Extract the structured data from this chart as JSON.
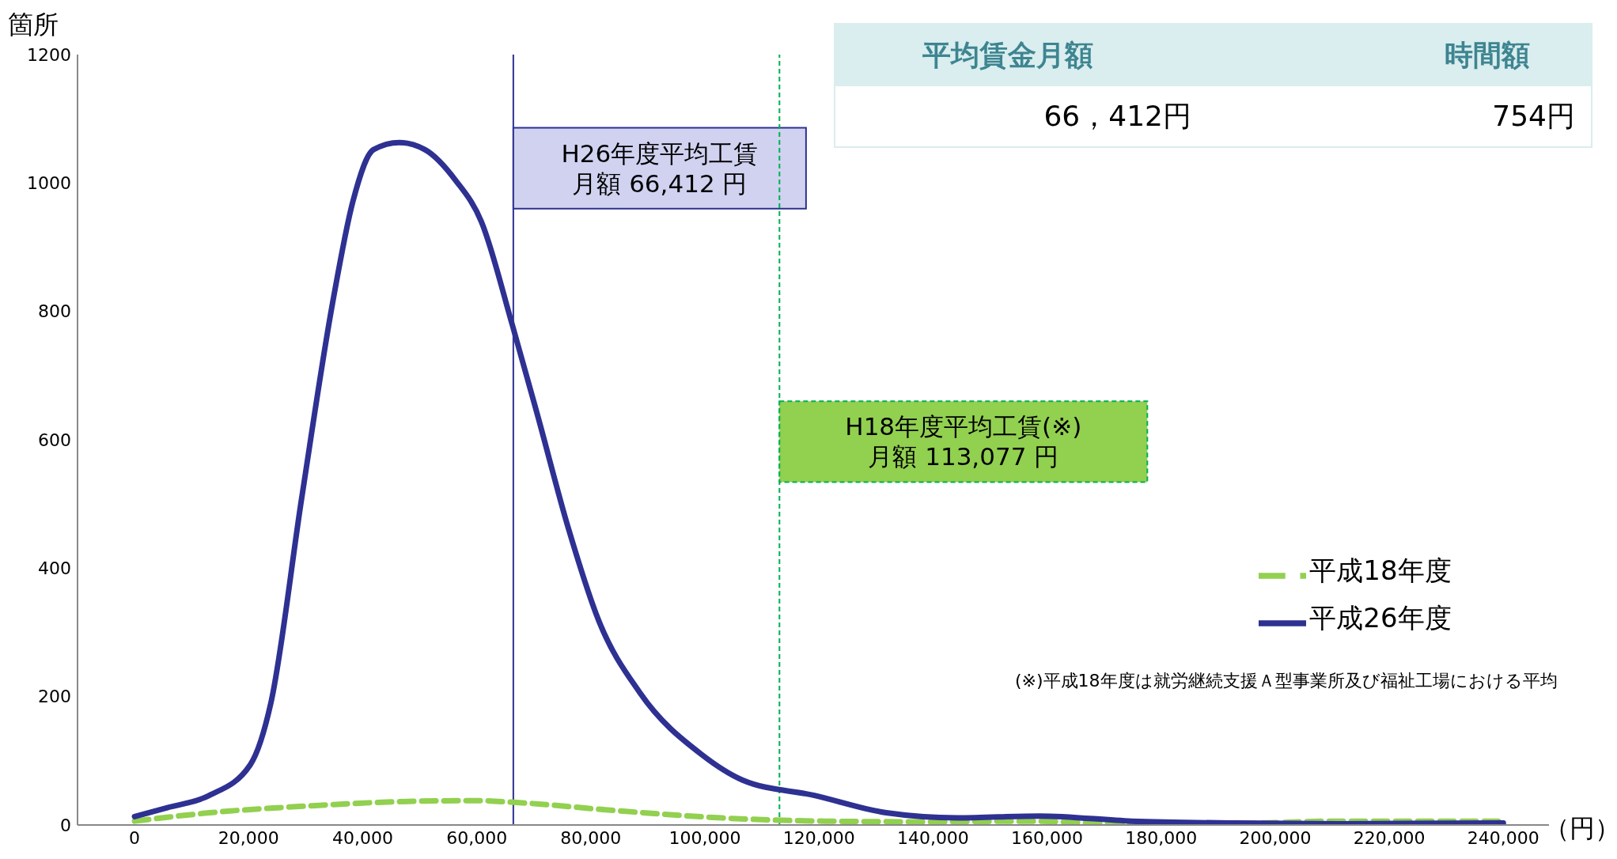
{
  "chart_data": {
    "type": "line",
    "ylabel": "箇所",
    "xlabel": "（円）",
    "xlim": [
      -10000,
      248000
    ],
    "ylim": [
      0,
      1200
    ],
    "xticks": [
      0,
      {
        "value": 20000,
        "label": "20,000"
      },
      {
        "value": 40000,
        "label": "40,000"
      },
      {
        "value": 60000,
        "label": "60,000"
      },
      {
        "value": 80000,
        "label": "80,000"
      },
      {
        "value": 100000,
        "label": "100,000"
      },
      {
        "value": 120000,
        "label": "120,000"
      },
      {
        "value": 140000,
        "label": "140,000"
      },
      {
        "value": 160000,
        "label": "160,000"
      },
      {
        "value": 180000,
        "label": "180,000"
      },
      {
        "value": 200000,
        "label": "200,000"
      },
      {
        "value": 220000,
        "label": "220,000"
      },
      {
        "value": 240000,
        "label": "240,000"
      }
    ],
    "yticks": [
      0,
      200,
      400,
      600,
      800,
      1000,
      1200
    ],
    "grid": false,
    "legend": "right",
    "marker": "none",
    "series": [
      {
        "name": "平成18年度",
        "color": "#92d050",
        "line_style": "dashed",
        "x": [
          0,
          13100,
          31100,
          49100,
          59900,
          67000,
          85000,
          103000,
          121000,
          139000,
          157000,
          175000,
          193000,
          211000,
          240000
        ],
        "values": [
          6,
          19,
          30,
          37,
          38,
          35,
          22,
          11,
          6,
          5,
          6,
          1,
          2,
          6,
          6
        ]
      },
      {
        "name": "平成26年度",
        "color": "#2e3192",
        "line_style": "solid",
        "x": [
          0,
          5750,
          13100,
          20300,
          23900,
          29300,
          34700,
          38300,
          41900,
          46400,
          50900,
          56300,
          60800,
          66200,
          70700,
          76100,
          81400,
          88600,
          99400,
          106600,
          119200,
          131800,
          144300,
          158700,
          174900,
          193000,
          211000,
          240000
        ],
        "values": [
          13,
          27,
          46,
          94,
          190,
          509,
          812,
          972,
          1052,
          1063,
          1052,
          1004,
          940,
          780,
          637,
          461,
          318,
          206,
          110,
          70,
          46,
          19,
          11,
          14,
          6,
          3,
          2,
          3
        ]
      }
    ],
    "ref_lines": [
      {
        "axis": "x",
        "value": 66412,
        "label": "H26年度平均工賃",
        "color": "#2e3192",
        "line_style": "solid"
      },
      {
        "axis": "x",
        "value": 113077,
        "label": "H18年度平均工賃(※)",
        "color": "#00b050",
        "line_style": "dashed"
      }
    ],
    "annotations": [
      "平均賃金月額",
      "時間額",
      "66，412円",
      "754円",
      "(※)平成18年度は就労継続支援Ａ型事業所及び福祉工場における平均",
      "月額 66,412 円",
      "月額 113,077 円"
    ]
  }
}
